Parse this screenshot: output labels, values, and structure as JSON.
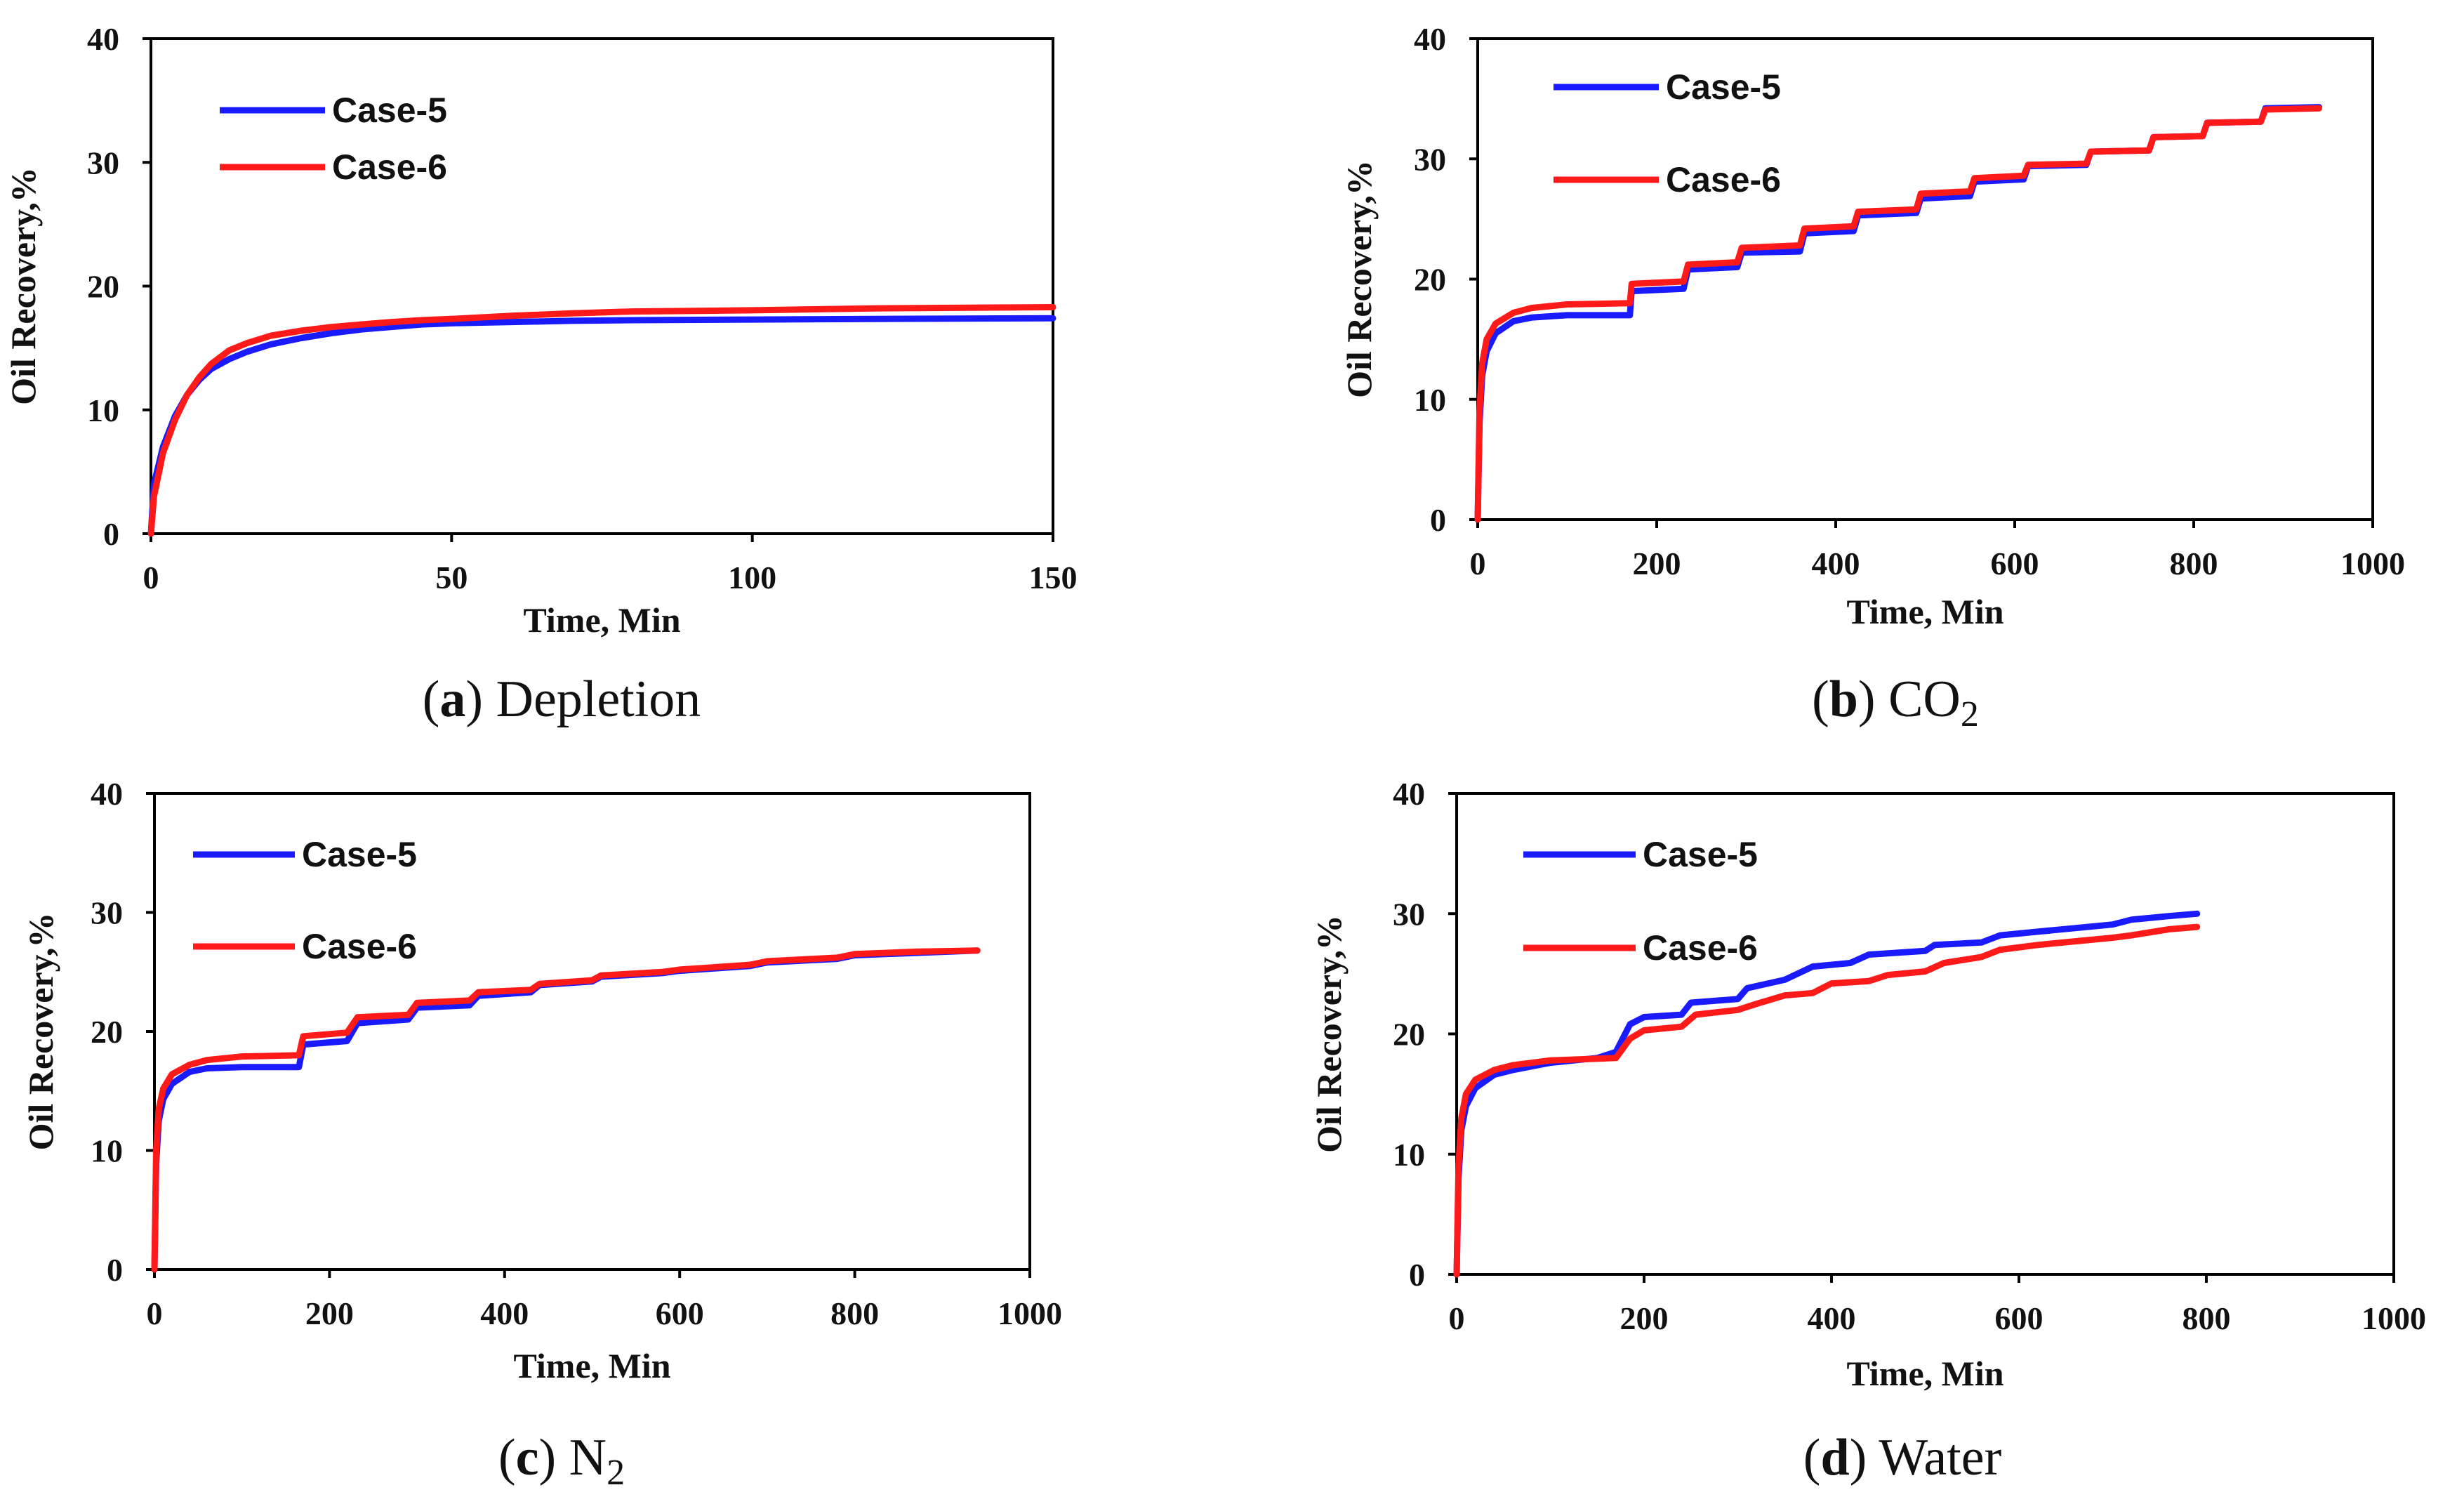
{
  "figure": {
    "description_labels": [
      "a",
      "b",
      "c",
      "d"
    ]
  },
  "chart_data": [
    {
      "type": "line",
      "panel": "a",
      "caption_letter": "a",
      "caption_text": "Depletion",
      "caption_sub": "",
      "xlabel": "Time, Min",
      "ylabel": "Oil Recovery,%",
      "xlim": [
        0,
        150
      ],
      "ylim": [
        0,
        40
      ],
      "xticks": [
        0,
        50,
        100,
        150
      ],
      "yticks": [
        0,
        10,
        20,
        30,
        40
      ],
      "legend": [
        "Case-5",
        "Case-6"
      ],
      "series": [
        {
          "name": "Case-5",
          "color": "#1a1aff",
          "points": [
            [
              0,
              0
            ],
            [
              0.5,
              4
            ],
            [
              2,
              7
            ],
            [
              4,
              9.5
            ],
            [
              6,
              11.2
            ],
            [
              8,
              12.4
            ],
            [
              10,
              13.3
            ],
            [
              13,
              14.1
            ],
            [
              16,
              14.7
            ],
            [
              20,
              15.3
            ],
            [
              25,
              15.8
            ],
            [
              30,
              16.2
            ],
            [
              35,
              16.5
            ],
            [
              40,
              16.7
            ],
            [
              45,
              16.9
            ],
            [
              50,
              17.0
            ],
            [
              60,
              17.1
            ],
            [
              70,
              17.2
            ],
            [
              80,
              17.25
            ],
            [
              100,
              17.3
            ],
            [
              120,
              17.35
            ],
            [
              150,
              17.4
            ]
          ]
        },
        {
          "name": "Case-6",
          "color": "#ff1a1a",
          "points": [
            [
              0,
              0
            ],
            [
              0.5,
              3
            ],
            [
              2,
              6.5
            ],
            [
              4,
              9.2
            ],
            [
              6,
              11.2
            ],
            [
              8,
              12.6
            ],
            [
              10,
              13.7
            ],
            [
              13,
              14.8
            ],
            [
              16,
              15.4
            ],
            [
              20,
              16.0
            ],
            [
              25,
              16.4
            ],
            [
              30,
              16.7
            ],
            [
              35,
              16.9
            ],
            [
              40,
              17.1
            ],
            [
              45,
              17.25
            ],
            [
              50,
              17.35
            ],
            [
              60,
              17.6
            ],
            [
              70,
              17.8
            ],
            [
              80,
              17.95
            ],
            [
              100,
              18.05
            ],
            [
              120,
              18.2
            ],
            [
              150,
              18.3
            ]
          ]
        }
      ]
    },
    {
      "type": "line",
      "panel": "b",
      "caption_letter": "b",
      "caption_text": "CO",
      "caption_sub": "2",
      "xlabel": "Time, Min",
      "ylabel": "Oil Recovery,%",
      "xlim": [
        0,
        1000
      ],
      "ylim": [
        0,
        40
      ],
      "xticks": [
        0,
        200,
        400,
        600,
        800,
        1000
      ],
      "yticks": [
        0,
        10,
        20,
        30,
        40
      ],
      "legend": [
        "Case-5",
        "Case-6"
      ],
      "series": [
        {
          "name": "Case-5",
          "color": "#1a1aff",
          "points": [
            [
              0,
              0
            ],
            [
              2,
              8
            ],
            [
              5,
              12
            ],
            [
              10,
              14
            ],
            [
              20,
              15.5
            ],
            [
              40,
              16.5
            ],
            [
              60,
              16.8
            ],
            [
              100,
              17.0
            ],
            [
              170,
              17.0
            ],
            [
              172,
              19.0
            ],
            [
              230,
              19.2
            ],
            [
              235,
              20.8
            ],
            [
              290,
              21.0
            ],
            [
              295,
              22.2
            ],
            [
              360,
              22.3
            ],
            [
              365,
              23.8
            ],
            [
              420,
              24.0
            ],
            [
              425,
              25.3
            ],
            [
              490,
              25.5
            ],
            [
              495,
              26.7
            ],
            [
              550,
              26.9
            ],
            [
              555,
              28.1
            ],
            [
              610,
              28.3
            ],
            [
              615,
              29.4
            ],
            [
              680,
              29.5
            ],
            [
              685,
              30.6
            ],
            [
              750,
              30.7
            ],
            [
              755,
              31.8
            ],
            [
              810,
              31.9
            ],
            [
              815,
              33.0
            ],
            [
              875,
              33.1
            ],
            [
              880,
              34.2
            ],
            [
              940,
              34.3
            ]
          ]
        },
        {
          "name": "Case-6",
          "color": "#ff1a1a",
          "points": [
            [
              0,
              0
            ],
            [
              2,
              9
            ],
            [
              5,
              13
            ],
            [
              10,
              15
            ],
            [
              20,
              16.3
            ],
            [
              40,
              17.2
            ],
            [
              60,
              17.6
            ],
            [
              100,
              17.9
            ],
            [
              170,
              18.0
            ],
            [
              172,
              19.6
            ],
            [
              230,
              19.8
            ],
            [
              235,
              21.2
            ],
            [
              290,
              21.4
            ],
            [
              295,
              22.6
            ],
            [
              360,
              22.8
            ],
            [
              365,
              24.2
            ],
            [
              420,
              24.4
            ],
            [
              425,
              25.6
            ],
            [
              490,
              25.8
            ],
            [
              495,
              27.1
            ],
            [
              550,
              27.3
            ],
            [
              555,
              28.4
            ],
            [
              610,
              28.6
            ],
            [
              615,
              29.5
            ],
            [
              680,
              29.6
            ],
            [
              685,
              30.6
            ],
            [
              750,
              30.7
            ],
            [
              755,
              31.8
            ],
            [
              810,
              31.9
            ],
            [
              815,
              33.0
            ],
            [
              875,
              33.1
            ],
            [
              880,
              34.1
            ],
            [
              940,
              34.2
            ]
          ]
        }
      ]
    },
    {
      "type": "line",
      "panel": "c",
      "caption_letter": "c",
      "caption_text": "N",
      "caption_sub": "2",
      "xlabel": "Time, Min",
      "ylabel": "Oil Recovery,%",
      "xlim": [
        0,
        1000
      ],
      "ylim": [
        0,
        40
      ],
      "xticks": [
        0,
        200,
        400,
        600,
        800,
        1000
      ],
      "yticks": [
        0,
        10,
        20,
        30,
        40
      ],
      "legend": [
        "Case-5",
        "Case-6"
      ],
      "series": [
        {
          "name": "Case-5",
          "color": "#1a1aff",
          "points": [
            [
              0,
              0
            ],
            [
              2,
              9
            ],
            [
              5,
              12.5
            ],
            [
              10,
              14.3
            ],
            [
              20,
              15.6
            ],
            [
              40,
              16.6
            ],
            [
              60,
              16.9
            ],
            [
              100,
              17.0
            ],
            [
              165,
              17.0
            ],
            [
              170,
              18.9
            ],
            [
              220,
              19.2
            ],
            [
              232,
              20.7
            ],
            [
              290,
              21.0
            ],
            [
              300,
              22.0
            ],
            [
              360,
              22.2
            ],
            [
              370,
              23.0
            ],
            [
              430,
              23.3
            ],
            [
              440,
              23.9
            ],
            [
              500,
              24.2
            ],
            [
              510,
              24.6
            ],
            [
              580,
              24.9
            ],
            [
              600,
              25.1
            ],
            [
              680,
              25.5
            ],
            [
              700,
              25.8
            ],
            [
              780,
              26.1
            ],
            [
              800,
              26.4
            ],
            [
              870,
              26.6
            ],
            [
              940,
              26.8
            ]
          ]
        },
        {
          "name": "Case-6",
          "color": "#ff1a1a",
          "points": [
            [
              0,
              0
            ],
            [
              2,
              10
            ],
            [
              5,
              13.5
            ],
            [
              10,
              15.2
            ],
            [
              20,
              16.4
            ],
            [
              40,
              17.2
            ],
            [
              60,
              17.6
            ],
            [
              100,
              17.9
            ],
            [
              165,
              18.0
            ],
            [
              170,
              19.6
            ],
            [
              220,
              19.9
            ],
            [
              232,
              21.2
            ],
            [
              290,
              21.4
            ],
            [
              300,
              22.4
            ],
            [
              360,
              22.6
            ],
            [
              370,
              23.3
            ],
            [
              430,
              23.5
            ],
            [
              440,
              24.0
            ],
            [
              500,
              24.3
            ],
            [
              510,
              24.7
            ],
            [
              580,
              25.0
            ],
            [
              600,
              25.2
            ],
            [
              680,
              25.6
            ],
            [
              700,
              25.9
            ],
            [
              780,
              26.2
            ],
            [
              800,
              26.5
            ],
            [
              870,
              26.7
            ],
            [
              940,
              26.8
            ]
          ]
        }
      ]
    },
    {
      "type": "line",
      "panel": "d",
      "caption_letter": "d",
      "caption_text": "Water",
      "caption_sub": "",
      "xlabel": "Time, Min",
      "ylabel": "Oil Recovery,%",
      "xlim": [
        0,
        1000
      ],
      "ylim": [
        0,
        40
      ],
      "xticks": [
        0,
        200,
        400,
        600,
        800,
        1000
      ],
      "yticks": [
        0,
        10,
        20,
        30,
        40
      ],
      "legend": [
        "Case-5",
        "Case-6"
      ],
      "series": [
        {
          "name": "Case-5",
          "color": "#1a1aff",
          "points": [
            [
              0,
              0
            ],
            [
              2,
              8
            ],
            [
              5,
              12
            ],
            [
              10,
              14
            ],
            [
              20,
              15.5
            ],
            [
              40,
              16.6
            ],
            [
              60,
              17.0
            ],
            [
              100,
              17.6
            ],
            [
              150,
              18.0
            ],
            [
              170,
              18.5
            ],
            [
              185,
              20.8
            ],
            [
              200,
              21.4
            ],
            [
              240,
              21.6
            ],
            [
              250,
              22.6
            ],
            [
              300,
              22.9
            ],
            [
              310,
              23.8
            ],
            [
              350,
              24.5
            ],
            [
              380,
              25.6
            ],
            [
              420,
              25.9
            ],
            [
              440,
              26.6
            ],
            [
              500,
              26.9
            ],
            [
              510,
              27.4
            ],
            [
              560,
              27.6
            ],
            [
              580,
              28.2
            ],
            [
              620,
              28.5
            ],
            [
              660,
              28.8
            ],
            [
              700,
              29.1
            ],
            [
              720,
              29.5
            ],
            [
              760,
              29.8
            ],
            [
              790,
              30.0
            ]
          ]
        },
        {
          "name": "Case-6",
          "color": "#ff1a1a",
          "points": [
            [
              0,
              0
            ],
            [
              2,
              9
            ],
            [
              5,
              13
            ],
            [
              10,
              15
            ],
            [
              20,
              16.2
            ],
            [
              40,
              17.0
            ],
            [
              60,
              17.4
            ],
            [
              100,
              17.8
            ],
            [
              170,
              18.0
            ],
            [
              185,
              19.6
            ],
            [
              200,
              20.3
            ],
            [
              240,
              20.6
            ],
            [
              255,
              21.6
            ],
            [
              300,
              22.0
            ],
            [
              320,
              22.5
            ],
            [
              350,
              23.2
            ],
            [
              380,
              23.4
            ],
            [
              400,
              24.2
            ],
            [
              440,
              24.4
            ],
            [
              460,
              24.9
            ],
            [
              500,
              25.2
            ],
            [
              520,
              25.9
            ],
            [
              560,
              26.4
            ],
            [
              580,
              27.0
            ],
            [
              620,
              27.4
            ],
            [
              660,
              27.7
            ],
            [
              700,
              28.0
            ],
            [
              720,
              28.2
            ],
            [
              760,
              28.7
            ],
            [
              790,
              28.9
            ]
          ]
        }
      ]
    }
  ]
}
